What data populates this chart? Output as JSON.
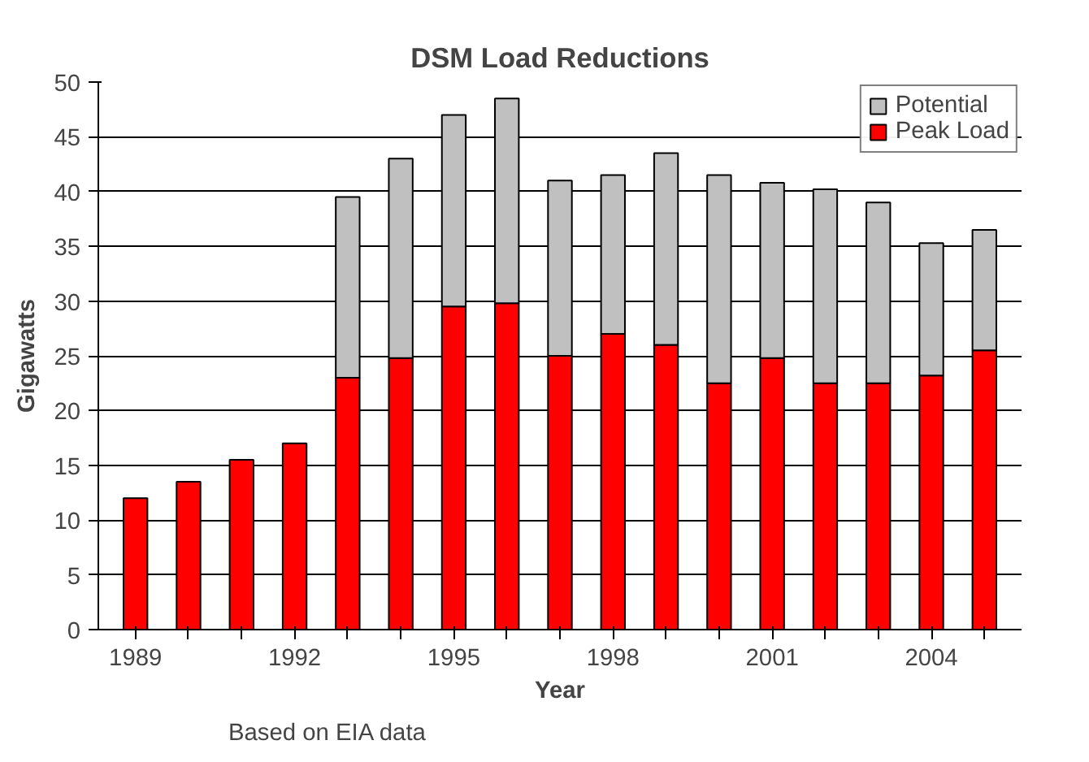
{
  "chart_data": {
    "type": "bar",
    "title": "DSM Load Reductions",
    "xlabel": "Year",
    "ylabel": "Gigawatts",
    "categories": [
      "1989",
      null,
      null,
      "1992",
      null,
      null,
      "1995",
      null,
      null,
      "1998",
      null,
      null,
      "2001",
      null,
      null,
      "2004",
      null
    ],
    "stacked": true,
    "series": [
      {
        "name": "Peak Load",
        "color": "#ff0000",
        "values": [
          12,
          13.5,
          15.5,
          17,
          23,
          24.8,
          29.5,
          29.8,
          25,
          27,
          26,
          22.5,
          24.8,
          22.5,
          22.5,
          23.2,
          25.5
        ]
      },
      {
        "name": "Potential",
        "color": "#c0c0c0",
        "values": [
          null,
          null,
          null,
          null,
          16.5,
          18.2,
          17.5,
          18.7,
          16,
          14.5,
          17.5,
          19,
          16,
          17.7,
          16.5,
          12.1,
          11
        ]
      }
    ],
    "ylim": [
      0,
      50
    ],
    "yticks": [
      0,
      5,
      10,
      15,
      20,
      25,
      30,
      35,
      40,
      45,
      50
    ],
    "grid": "y",
    "legend": "top right",
    "annotations": [
      "Based on EIA data"
    ]
  }
}
